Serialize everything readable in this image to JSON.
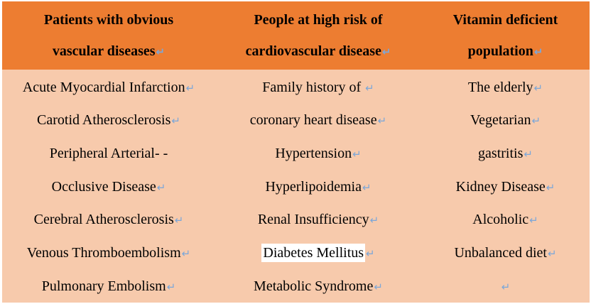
{
  "headers": [
    {
      "line1": "Patients with obvious",
      "line2": "vascular diseases"
    },
    {
      "line1": "People at high risk of",
      "line2": "cardiovascular disease"
    },
    {
      "line1": "Vitamin deficient",
      "line2": "population"
    }
  ],
  "return_mark": "↵",
  "columns": {
    "vascular": [
      "Acute Myocardial Infarction",
      "Carotid Atherosclerosis",
      "Peripheral Arterial- -",
      "Occlusive Disease",
      "Cerebral Atherosclerosis",
      "Venous Thromboembolism",
      "Pulmonary Embolism"
    ],
    "risk": [
      "Family history of ",
      "coronary heart disease",
      "Hypertension",
      "Hyperlipoidemia",
      "Renal Insufficiency",
      "Diabetes Mellitus",
      "Metabolic Syndrome"
    ],
    "vitamin": [
      "The elderly",
      "Vegetarian",
      "gastritis",
      "Kidney Disease",
      "Alcoholic",
      "Unbalanced diet",
      ""
    ]
  },
  "colors": {
    "header_bg": "#ed7d31",
    "body_bg": "#f7caac",
    "return_mark": "#7ba7d9"
  }
}
